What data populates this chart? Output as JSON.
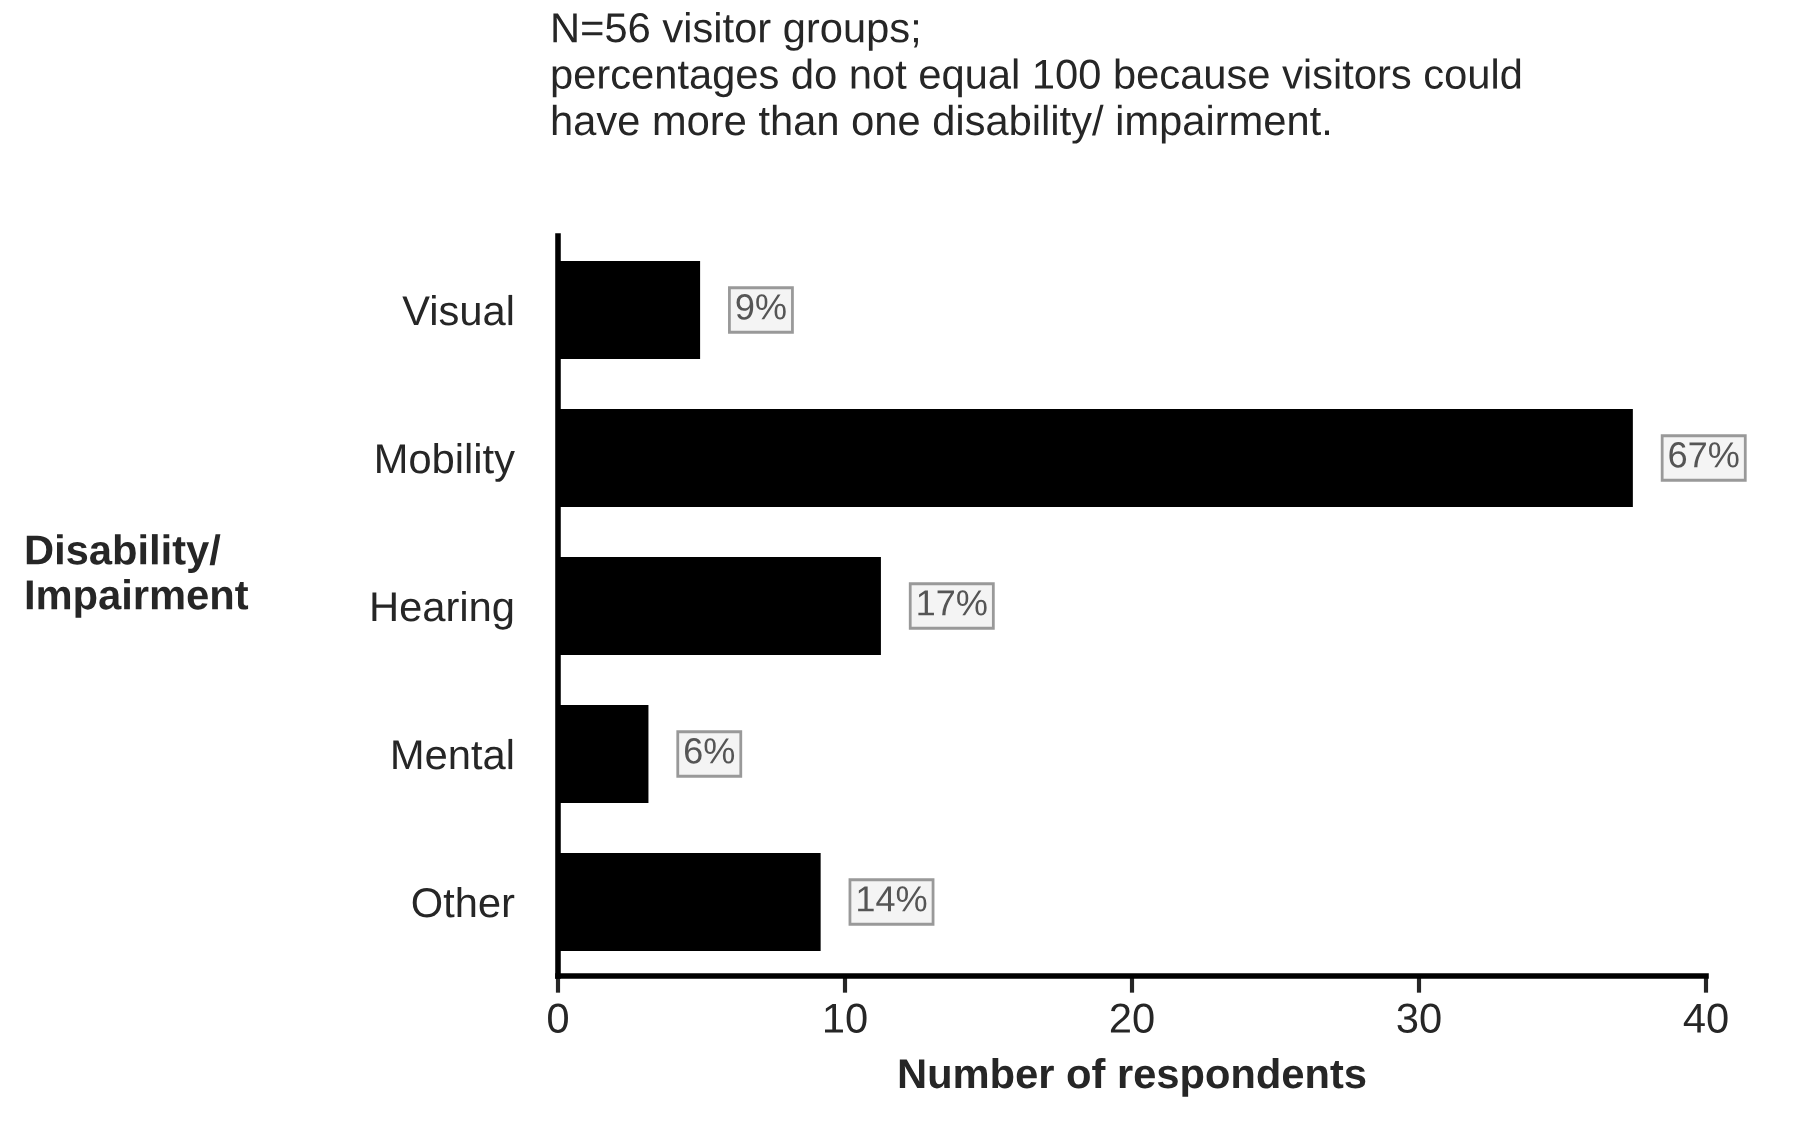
{
  "chart_data": {
    "type": "bar",
    "orientation": "horizontal",
    "title": "N=56 visitor groups;\npercentages do not equal 100 because visitors could\nhave more than one disability/ impairment.",
    "ylabel": "Disability/\nImpairment",
    "xlabel": "Number of respondents",
    "categories": [
      "Visual",
      "Mobility",
      "Hearing",
      "Mental",
      "Other"
    ],
    "values": [
      5,
      37.5,
      11.3,
      3.2,
      9.2
    ],
    "annotations": [
      {
        "text": "9%",
        "x": 5,
        "y": "Visual"
      },
      {
        "text": "67%",
        "x": 37.5,
        "y": "Mobility"
      },
      {
        "text": "17%",
        "x": 11.3,
        "y": "Hearing"
      },
      {
        "text": "6%",
        "x": 3.2,
        "y": "Mental"
      },
      {
        "text": "14%",
        "x": 9.2,
        "y": "Other"
      }
    ],
    "color": "#000000",
    "xlim": [
      0,
      40
    ],
    "xticks": [
      0,
      10,
      20,
      30,
      40
    ],
    "grid": false
  }
}
